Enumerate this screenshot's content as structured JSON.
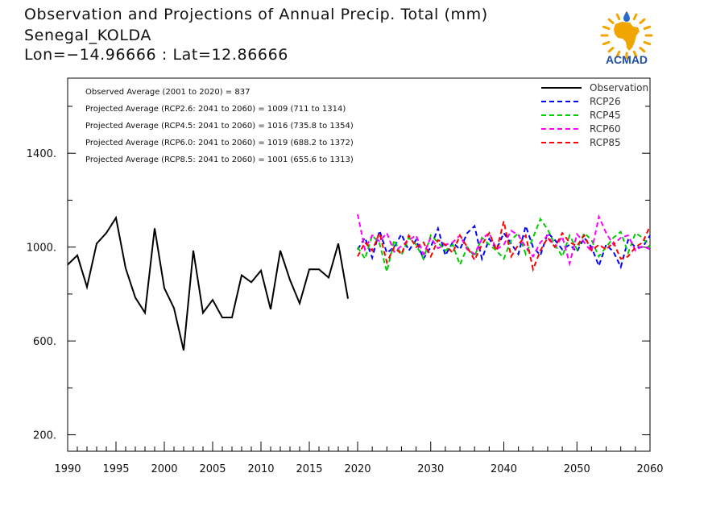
{
  "header": {
    "title_line1": "Observation and Projections of Annual Precip. Total (mm)",
    "title_line2": "Senegal_KOLDA",
    "title_line3": "Lon=−14.96666 : Lat=12.86666"
  },
  "logo": {
    "text": "ACMAD",
    "text_color": "#1f4ea8",
    "map_color": "#f0a500",
    "drop_color": "#2a6ac8"
  },
  "annotations": [
    "Observed Average (2001 to 2020) = 837",
    "Projected Average (RCP2.6: 2041 to 2060) = 1009 (711 to 1314)",
    "Projected Average (RCP4.5: 2041 to 2060) = 1016 (735.8 to 1354)",
    "Projected Average (RCP6.0: 2041 to 2060) = 1019 (688.2 to 1372)",
    "Projected Average (RCP8.5: 2041 to 2060) = 1001 (655.6 to 1313)"
  ],
  "chart_data": {
    "type": "line",
    "xlim": [
      1990,
      2060
    ],
    "ylim": [
      130,
      1720
    ],
    "grid": false,
    "legend_position": "top-right",
    "x_ticks": [
      "1990",
      "1995",
      "2000",
      "2005",
      "2010",
      "2015",
      "2020",
      "2030",
      "2040",
      "2050",
      "2060"
    ],
    "y_ticks": [
      "200.",
      "600.",
      "1000.",
      "1400."
    ],
    "series": [
      {
        "name": "Observation",
        "color": "#000000",
        "dash": "solid",
        "x": [
          1990,
          1991,
          1992,
          1993,
          1994,
          1995,
          1996,
          1997,
          1998,
          1999,
          2000,
          2001,
          2002,
          2003,
          2004,
          2005,
          2006,
          2007,
          2008,
          2009,
          2010,
          2011,
          2012,
          2013,
          2014,
          2015,
          2016,
          2017,
          2018,
          2019
        ],
        "y": [
          925,
          965,
          830,
          1015,
          1060,
          1125,
          910,
          785,
          720,
          1080,
          825,
          740,
          560,
          985,
          720,
          775,
          700,
          700,
          880,
          850,
          900,
          735,
          985,
          860,
          760,
          905,
          905,
          870,
          1015,
          780
        ]
      },
      {
        "name": "RCP26",
        "color": "#0000ff",
        "dash": "dashed",
        "x": [
          2020,
          2021,
          2022,
          2023,
          2024,
          2025,
          2026,
          2027,
          2028,
          2029,
          2030,
          2031,
          2032,
          2033,
          2034,
          2035,
          2036,
          2037,
          2038,
          2039,
          2040,
          2041,
          2042,
          2043,
          2044,
          2045,
          2046,
          2047,
          2048,
          2049,
          2050,
          2051,
          2052,
          2053,
          2054,
          2055,
          2056,
          2057,
          2058,
          2059,
          2060
        ],
        "y": [
          990,
          1040,
          955,
          1070,
          975,
          1000,
          1055,
          985,
          1030,
          950,
          1000,
          1080,
          965,
          1020,
          990,
          1060,
          1090,
          950,
          1035,
          990,
          1060,
          1015,
          970,
          1090,
          1000,
          965,
          1060,
          1030,
          990,
          1010,
          980,
          1040,
          1000,
          920,
          1010,
          980,
          915,
          1030,
          1000,
          1000,
          1050
        ]
      },
      {
        "name": "RCP45",
        "color": "#00cc00",
        "dash": "dashed",
        "x": [
          2020,
          2021,
          2022,
          2023,
          2024,
          2025,
          2026,
          2027,
          2028,
          2029,
          2030,
          2031,
          2032,
          2033,
          2034,
          2035,
          2036,
          2037,
          2038,
          2039,
          2040,
          2041,
          2042,
          2043,
          2044,
          2045,
          2046,
          2047,
          2048,
          2049,
          2050,
          2051,
          2052,
          2053,
          2054,
          2055,
          2056,
          2057,
          2058,
          2059,
          2060
        ],
        "y": [
          1000,
          950,
          1050,
          1015,
          895,
          1030,
          965,
          1040,
          1010,
          950,
          1050,
          1020,
          985,
          1010,
          925,
          1000,
          960,
          1040,
          1010,
          985,
          950,
          1030,
          1060,
          970,
          1040,
          1120,
          1075,
          1010,
          960,
          1050,
          990,
          1060,
          1030,
          960,
          1000,
          1040,
          1065,
          975,
          1060,
          1040,
          1000
        ]
      },
      {
        "name": "RCP60",
        "color": "#ff00ff",
        "dash": "dashed",
        "x": [
          2020,
          2021,
          2022,
          2023,
          2024,
          2025,
          2026,
          2027,
          2028,
          2029,
          2030,
          2031,
          2032,
          2033,
          2034,
          2035,
          2036,
          2037,
          2038,
          2039,
          2040,
          2041,
          2042,
          2043,
          2044,
          2045,
          2046,
          2047,
          2048,
          2049,
          2050,
          2051,
          2052,
          2053,
          2054,
          2055,
          2056,
          2057,
          2058,
          2059,
          2060
        ],
        "y": [
          1140,
          990,
          1050,
          1025,
          1060,
          980,
          1005,
          1030,
          1050,
          970,
          1040,
          995,
          1010,
          1020,
          1050,
          990,
          970,
          1035,
          1060,
          990,
          1010,
          1070,
          1050,
          1000,
          960,
          1020,
          1050,
          1000,
          1045,
          930,
          1055,
          1020,
          980,
          1130,
          1060,
          1010,
          1040,
          1050,
          985,
          1005,
          990
        ]
      },
      {
        "name": "RCP85",
        "color": "#ff0000",
        "dash": "dashed",
        "x": [
          2020,
          2021,
          2022,
          2023,
          2024,
          2025,
          2026,
          2027,
          2028,
          2029,
          2030,
          2031,
          2032,
          2033,
          2034,
          2035,
          2036,
          2037,
          2038,
          2039,
          2040,
          2041,
          2042,
          2043,
          2044,
          2045,
          2046,
          2047,
          2048,
          2049,
          2050,
          2051,
          2052,
          2053,
          2054,
          2055,
          2056,
          2057,
          2058,
          2059,
          2060
        ],
        "y": [
          960,
          1020,
          985,
          1060,
          935,
          1000,
          970,
          1050,
          1000,
          1020,
          960,
          1030,
          1010,
          975,
          1050,
          1000,
          945,
          1010,
          1060,
          985,
          1110,
          960,
          1010,
          1050,
          905,
          985,
          1040,
          1000,
          1060,
          1020,
          1005,
          1050,
          985,
          1010,
          990,
          1020,
          950,
          960,
          1000,
          1020,
          1090
        ]
      }
    ]
  }
}
